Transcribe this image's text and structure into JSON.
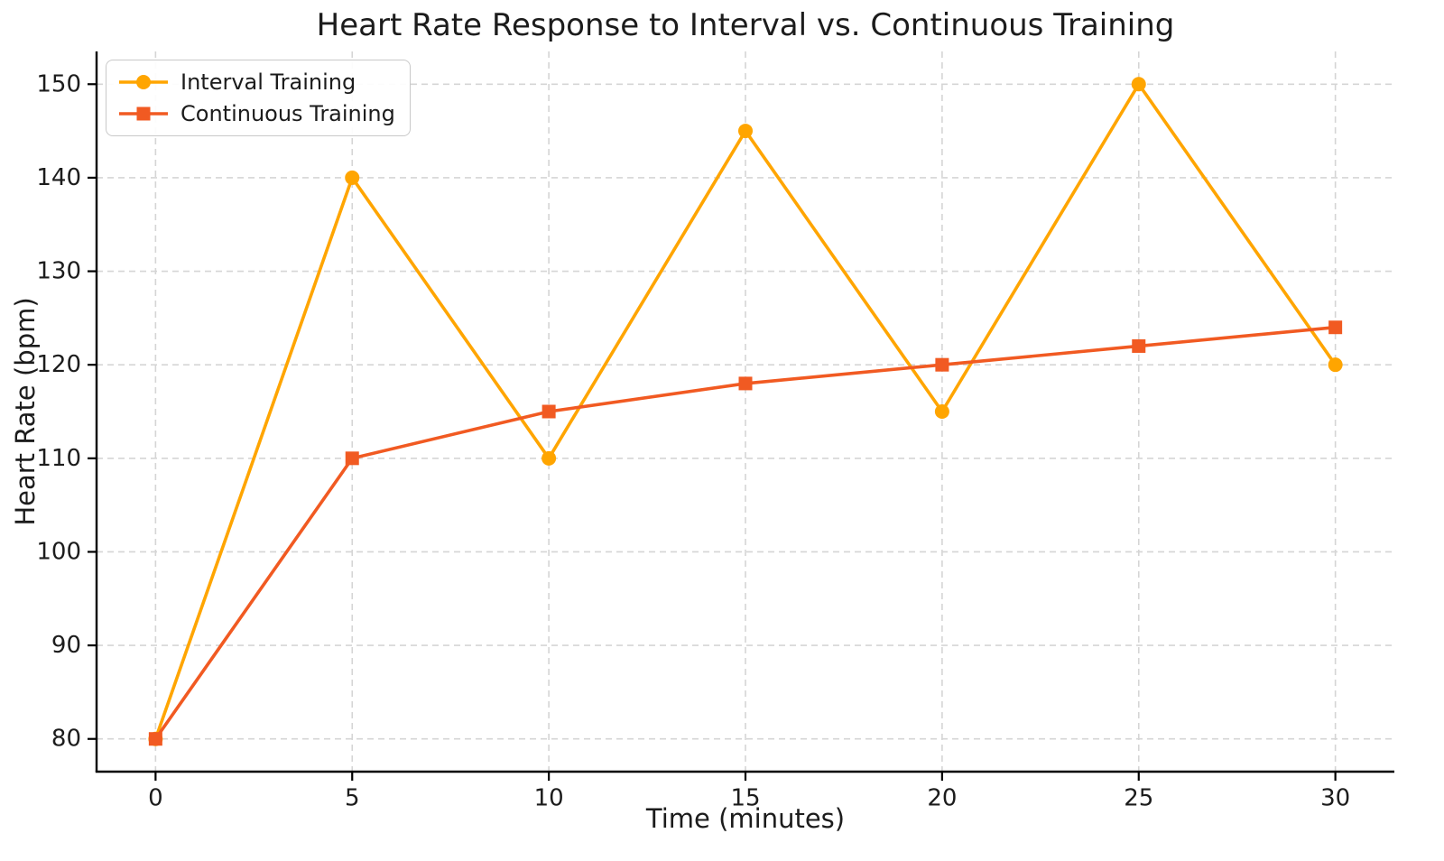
{
  "chart_data": {
    "type": "line",
    "title": "Heart Rate Response to Interval vs. Continuous Training",
    "xlabel": "Time (minutes)",
    "ylabel": "Heart Rate (bpm)",
    "x": [
      0,
      5,
      10,
      15,
      20,
      25,
      30
    ],
    "series": [
      {
        "name": "Interval Training",
        "values": [
          80,
          140,
          110,
          145,
          115,
          150,
          120
        ],
        "color": "#FFA500",
        "marker": "circle"
      },
      {
        "name": "Continuous Training",
        "values": [
          80,
          110,
          115,
          118,
          120,
          122,
          124
        ],
        "color": "#F15A22",
        "marker": "square"
      }
    ],
    "x_ticks": [
      "0",
      "5",
      "10",
      "15",
      "20",
      "25",
      "30"
    ],
    "y_ticks": [
      "80",
      "90",
      "100",
      "110",
      "120",
      "130",
      "140",
      "150"
    ],
    "x_tick_values": [
      0,
      5,
      10,
      15,
      20,
      25,
      30
    ],
    "y_tick_values": [
      80,
      90,
      100,
      110,
      120,
      130,
      140,
      150
    ],
    "xlim": [
      -1.5,
      31.5
    ],
    "ylim": [
      76.5,
      153.5
    ],
    "grid": true,
    "grid_style": "dashed",
    "legend_position": "upper-left",
    "colors": {
      "grid": "#d5d5d5",
      "axis": "#000000",
      "text": "#1c1c1c",
      "background": "#ffffff"
    }
  }
}
